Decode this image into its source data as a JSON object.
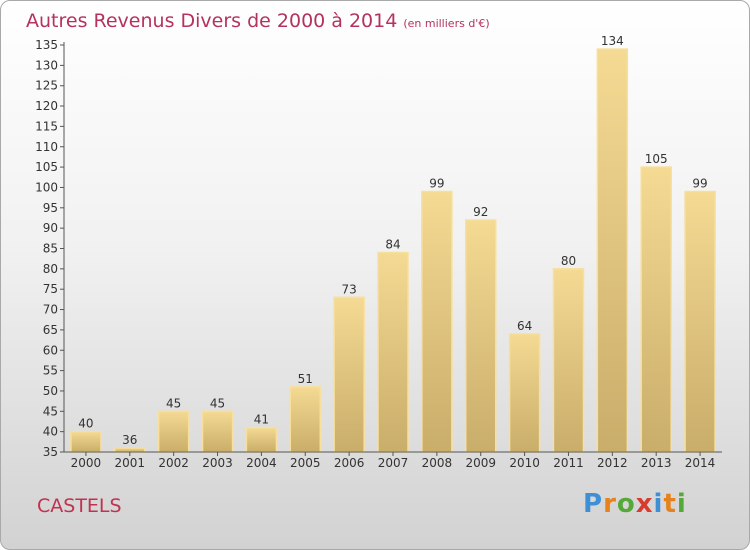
{
  "chart_data": {
    "type": "bar",
    "title": "Autres Revenus Divers de 2000 à 2014",
    "subtitle": "(en milliers d'€)",
    "categories": [
      "2000",
      "2001",
      "2002",
      "2003",
      "2004",
      "2005",
      "2006",
      "2007",
      "2008",
      "2009",
      "2010",
      "2011",
      "2012",
      "2013",
      "2014"
    ],
    "values": [
      40,
      36,
      45,
      45,
      41,
      51,
      73,
      84,
      99,
      92,
      64,
      80,
      134,
      105,
      99
    ],
    "ylim": [
      35,
      135
    ],
    "ytick_step": 5,
    "xlabel": "",
    "ylabel": "",
    "grid": false,
    "bar_color": "#e8cc82",
    "bar_edge_color": "#f7df9c"
  },
  "footer": {
    "place": "CASTELS",
    "logo": "Proxiti",
    "logo_colors": [
      "#3f8fd6",
      "#e6821e",
      "#54a93a",
      "#d93c2e",
      "#3f8fd6",
      "#e6821e",
      "#54a93a"
    ]
  }
}
